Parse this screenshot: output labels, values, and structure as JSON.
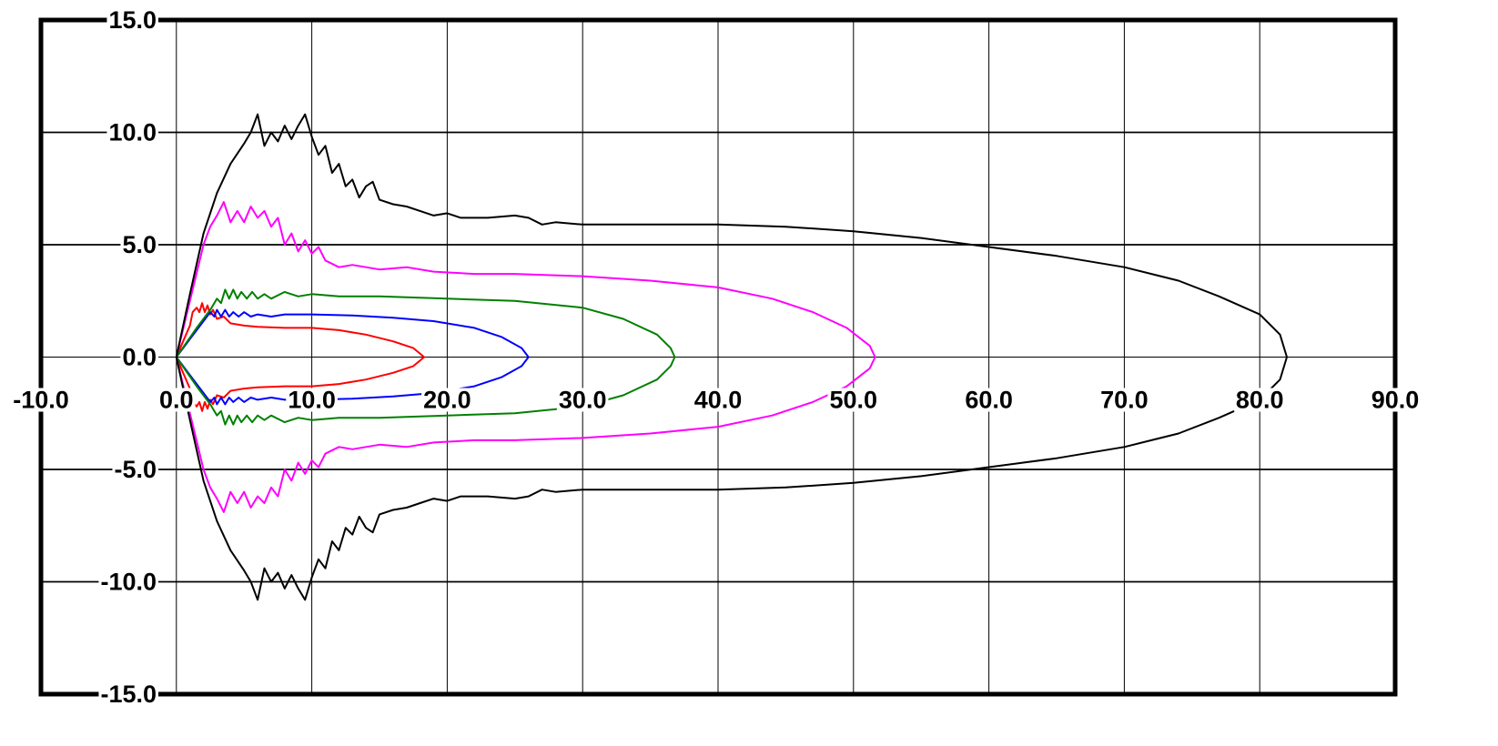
{
  "chart_data": {
    "type": "line",
    "title": "",
    "xlabel": "",
    "ylabel": "",
    "xlim": [
      -10,
      90
    ],
    "ylim": [
      -15,
      15
    ],
    "x_ticks": [
      -10,
      0,
      10,
      20,
      30,
      40,
      50,
      60,
      70,
      80,
      90
    ],
    "y_ticks": [
      -15,
      -10,
      -5,
      0,
      5,
      10,
      15
    ],
    "x_tick_labels": [
      "-10.0",
      "0.0",
      "10.0",
      "20.0",
      "30.0",
      "40.0",
      "50.0",
      "60.0",
      "70.0",
      "80.0",
      "90.0"
    ],
    "y_tick_labels": [
      "-15.0",
      "-10.0",
      "-5.0",
      "0.0",
      "5.0",
      "10.0",
      "15.0"
    ],
    "grid": true,
    "legend": "none",
    "series": [
      {
        "color": "#ff0000",
        "points": [
          [
            0,
            0
          ],
          [
            0.5,
            0.7
          ],
          [
            1.0,
            1.4
          ],
          [
            1.2,
            2.0
          ],
          [
            1.5,
            2.2
          ],
          [
            1.7,
            2.0
          ],
          [
            1.9,
            2.4
          ],
          [
            2.1,
            2.0
          ],
          [
            2.3,
            2.3
          ],
          [
            2.5,
            1.9
          ],
          [
            2.7,
            2.1
          ],
          [
            3.0,
            1.7
          ],
          [
            3.5,
            1.8
          ],
          [
            4.0,
            1.5
          ],
          [
            5.0,
            1.4
          ],
          [
            6.0,
            1.35
          ],
          [
            8.0,
            1.3
          ],
          [
            10.0,
            1.3
          ],
          [
            12.0,
            1.2
          ],
          [
            14.0,
            1.0
          ],
          [
            16.0,
            0.7
          ],
          [
            17.5,
            0.4
          ],
          [
            18.3,
            0.0
          ],
          [
            17.5,
            -0.4
          ],
          [
            16.0,
            -0.7
          ],
          [
            14.0,
            -1.0
          ],
          [
            12.0,
            -1.2
          ],
          [
            10.0,
            -1.3
          ],
          [
            8.0,
            -1.3
          ],
          [
            6.0,
            -1.35
          ],
          [
            5.0,
            -1.4
          ],
          [
            4.0,
            -1.5
          ],
          [
            3.5,
            -1.8
          ],
          [
            3.0,
            -1.7
          ],
          [
            2.7,
            -2.1
          ],
          [
            2.5,
            -1.9
          ],
          [
            2.3,
            -2.3
          ],
          [
            2.1,
            -2.0
          ],
          [
            1.9,
            -2.4
          ],
          [
            1.7,
            -2.0
          ],
          [
            1.5,
            -2.2
          ],
          [
            1.2,
            -2.0
          ],
          [
            1.0,
            -1.4
          ],
          [
            0.5,
            -0.7
          ],
          [
            0,
            0
          ]
        ]
      },
      {
        "color": "#0000ff",
        "points": [
          [
            0,
            0
          ],
          [
            1.0,
            0.8
          ],
          [
            2.0,
            1.6
          ],
          [
            2.5,
            2.0
          ],
          [
            2.8,
            1.8
          ],
          [
            3.0,
            2.1
          ],
          [
            3.3,
            1.8
          ],
          [
            3.6,
            2.1
          ],
          [
            3.9,
            1.8
          ],
          [
            4.2,
            2.0
          ],
          [
            4.6,
            1.8
          ],
          [
            5.0,
            2.0
          ],
          [
            5.5,
            1.8
          ],
          [
            6.0,
            1.9
          ],
          [
            7.0,
            1.8
          ],
          [
            8.0,
            1.9
          ],
          [
            10.0,
            1.9
          ],
          [
            13.0,
            1.85
          ],
          [
            16.0,
            1.75
          ],
          [
            19.0,
            1.6
          ],
          [
            22.0,
            1.3
          ],
          [
            24.0,
            0.9
          ],
          [
            25.5,
            0.4
          ],
          [
            26.0,
            0.0
          ],
          [
            25.5,
            -0.4
          ],
          [
            24.0,
            -0.9
          ],
          [
            22.0,
            -1.3
          ],
          [
            19.0,
            -1.6
          ],
          [
            16.0,
            -1.75
          ],
          [
            13.0,
            -1.85
          ],
          [
            10.0,
            -1.9
          ],
          [
            8.0,
            -1.9
          ],
          [
            7.0,
            -1.8
          ],
          [
            6.0,
            -1.9
          ],
          [
            5.5,
            -1.8
          ],
          [
            5.0,
            -2.0
          ],
          [
            4.6,
            -1.8
          ],
          [
            4.2,
            -2.0
          ],
          [
            3.9,
            -1.8
          ],
          [
            3.6,
            -2.1
          ],
          [
            3.3,
            -1.8
          ],
          [
            3.0,
            -2.1
          ],
          [
            2.8,
            -1.8
          ],
          [
            2.5,
            -2.0
          ],
          [
            2.0,
            -1.6
          ],
          [
            1.0,
            -0.8
          ],
          [
            0,
            0
          ]
        ]
      },
      {
        "color": "#008000",
        "points": [
          [
            0,
            0
          ],
          [
            1.5,
            1.3
          ],
          [
            2.5,
            2.1
          ],
          [
            3.0,
            2.6
          ],
          [
            3.3,
            2.4
          ],
          [
            3.6,
            3.0
          ],
          [
            3.9,
            2.6
          ],
          [
            4.2,
            3.0
          ],
          [
            4.5,
            2.6
          ],
          [
            4.8,
            2.9
          ],
          [
            5.2,
            2.6
          ],
          [
            5.6,
            2.9
          ],
          [
            6.0,
            2.6
          ],
          [
            6.5,
            2.8
          ],
          [
            7.0,
            2.6
          ],
          [
            8.0,
            2.9
          ],
          [
            9.0,
            2.7
          ],
          [
            10.0,
            2.8
          ],
          [
            12.0,
            2.7
          ],
          [
            15.0,
            2.7
          ],
          [
            20.0,
            2.6
          ],
          [
            25.0,
            2.5
          ],
          [
            30.0,
            2.2
          ],
          [
            33.0,
            1.7
          ],
          [
            35.5,
            1.0
          ],
          [
            36.5,
            0.4
          ],
          [
            36.8,
            0.0
          ],
          [
            36.5,
            -0.4
          ],
          [
            35.5,
            -1.0
          ],
          [
            33.0,
            -1.7
          ],
          [
            30.0,
            -2.2
          ],
          [
            25.0,
            -2.5
          ],
          [
            20.0,
            -2.6
          ],
          [
            15.0,
            -2.7
          ],
          [
            12.0,
            -2.7
          ],
          [
            10.0,
            -2.8
          ],
          [
            9.0,
            -2.7
          ],
          [
            8.0,
            -2.9
          ],
          [
            7.0,
            -2.6
          ],
          [
            6.5,
            -2.8
          ],
          [
            6.0,
            -2.6
          ],
          [
            5.6,
            -2.9
          ],
          [
            5.2,
            -2.6
          ],
          [
            4.8,
            -2.9
          ],
          [
            4.5,
            -2.6
          ],
          [
            4.2,
            -3.0
          ],
          [
            3.9,
            -2.6
          ],
          [
            3.6,
            -3.0
          ],
          [
            3.3,
            -2.4
          ],
          [
            3.0,
            -2.6
          ],
          [
            2.5,
            -2.1
          ],
          [
            1.5,
            -1.3
          ],
          [
            0,
            0
          ]
        ]
      },
      {
        "color": "#ff00ff",
        "points": [
          [
            0,
            0
          ],
          [
            1.0,
            2.5
          ],
          [
            2.0,
            5.0
          ],
          [
            2.5,
            5.8
          ],
          [
            3.0,
            6.3
          ],
          [
            3.5,
            6.9
          ],
          [
            4.0,
            6.0
          ],
          [
            4.5,
            6.5
          ],
          [
            5.0,
            6.0
          ],
          [
            5.5,
            6.7
          ],
          [
            6.0,
            6.2
          ],
          [
            6.5,
            6.5
          ],
          [
            7.0,
            5.8
          ],
          [
            7.5,
            6.2
          ],
          [
            8.0,
            5.0
          ],
          [
            8.5,
            5.5
          ],
          [
            9.0,
            4.7
          ],
          [
            9.5,
            5.2
          ],
          [
            10.0,
            4.6
          ],
          [
            10.5,
            4.9
          ],
          [
            11.0,
            4.3
          ],
          [
            12.0,
            4.0
          ],
          [
            13.0,
            4.1
          ],
          [
            15.0,
            3.9
          ],
          [
            17.0,
            4.0
          ],
          [
            19.0,
            3.8
          ],
          [
            22.0,
            3.7
          ],
          [
            25.0,
            3.7
          ],
          [
            30.0,
            3.6
          ],
          [
            35.0,
            3.4
          ],
          [
            40.0,
            3.1
          ],
          [
            44.0,
            2.6
          ],
          [
            47.0,
            2.0
          ],
          [
            49.5,
            1.3
          ],
          [
            51.2,
            0.5
          ],
          [
            51.6,
            0.0
          ],
          [
            51.2,
            -0.5
          ],
          [
            49.5,
            -1.3
          ],
          [
            47.0,
            -2.0
          ],
          [
            44.0,
            -2.6
          ],
          [
            40.0,
            -3.1
          ],
          [
            35.0,
            -3.4
          ],
          [
            30.0,
            -3.6
          ],
          [
            25.0,
            -3.7
          ],
          [
            22.0,
            -3.7
          ],
          [
            19.0,
            -3.8
          ],
          [
            17.0,
            -4.0
          ],
          [
            15.0,
            -3.9
          ],
          [
            13.0,
            -4.1
          ],
          [
            12.0,
            -4.0
          ],
          [
            11.0,
            -4.3
          ],
          [
            10.5,
            -4.9
          ],
          [
            10.0,
            -4.6
          ],
          [
            9.5,
            -5.2
          ],
          [
            9.0,
            -4.7
          ],
          [
            8.5,
            -5.5
          ],
          [
            8.0,
            -5.0
          ],
          [
            7.5,
            -6.2
          ],
          [
            7.0,
            -5.8
          ],
          [
            6.5,
            -6.5
          ],
          [
            6.0,
            -6.2
          ],
          [
            5.5,
            -6.7
          ],
          [
            5.0,
            -6.0
          ],
          [
            4.5,
            -6.5
          ],
          [
            4.0,
            -6.0
          ],
          [
            3.5,
            -6.9
          ],
          [
            3.0,
            -6.3
          ],
          [
            2.5,
            -5.8
          ],
          [
            2.0,
            -5.0
          ],
          [
            1.0,
            -2.5
          ],
          [
            0,
            0
          ]
        ]
      },
      {
        "color": "#000000",
        "points": [
          [
            0,
            0
          ],
          [
            1.0,
            2.8
          ],
          [
            2.0,
            5.5
          ],
          [
            3.0,
            7.3
          ],
          [
            4.0,
            8.6
          ],
          [
            5.0,
            9.5
          ],
          [
            5.5,
            10.0
          ],
          [
            6.0,
            10.8
          ],
          [
            6.5,
            9.4
          ],
          [
            7.0,
            10.0
          ],
          [
            7.5,
            9.6
          ],
          [
            8.0,
            10.3
          ],
          [
            8.5,
            9.7
          ],
          [
            9.0,
            10.3
          ],
          [
            9.5,
            10.8
          ],
          [
            10.0,
            9.8
          ],
          [
            10.5,
            9.0
          ],
          [
            11.0,
            9.4
          ],
          [
            11.5,
            8.2
          ],
          [
            12.0,
            8.6
          ],
          [
            12.5,
            7.6
          ],
          [
            13.0,
            7.9
          ],
          [
            13.5,
            7.1
          ],
          [
            14.0,
            7.6
          ],
          [
            14.5,
            7.8
          ],
          [
            15.0,
            7.0
          ],
          [
            16.0,
            6.8
          ],
          [
            17.0,
            6.7
          ],
          [
            18.0,
            6.5
          ],
          [
            19.0,
            6.3
          ],
          [
            20.0,
            6.4
          ],
          [
            21.0,
            6.2
          ],
          [
            23.0,
            6.2
          ],
          [
            25.0,
            6.3
          ],
          [
            26.0,
            6.2
          ],
          [
            27.0,
            5.9
          ],
          [
            28.0,
            6.0
          ],
          [
            30.0,
            5.9
          ],
          [
            35.0,
            5.9
          ],
          [
            40.0,
            5.9
          ],
          [
            45.0,
            5.8
          ],
          [
            50.0,
            5.6
          ],
          [
            55.0,
            5.3
          ],
          [
            60.0,
            4.9
          ],
          [
            65.0,
            4.5
          ],
          [
            70.0,
            4.0
          ],
          [
            74.0,
            3.4
          ],
          [
            77.0,
            2.7
          ],
          [
            80.0,
            1.9
          ],
          [
            81.5,
            1.0
          ],
          [
            82.0,
            0.0
          ],
          [
            81.5,
            -1.0
          ],
          [
            80.0,
            -1.9
          ],
          [
            77.0,
            -2.7
          ],
          [
            74.0,
            -3.4
          ],
          [
            70.0,
            -4.0
          ],
          [
            65.0,
            -4.5
          ],
          [
            60.0,
            -4.9
          ],
          [
            55.0,
            -5.3
          ],
          [
            50.0,
            -5.6
          ],
          [
            45.0,
            -5.8
          ],
          [
            40.0,
            -5.9
          ],
          [
            35.0,
            -5.9
          ],
          [
            30.0,
            -5.9
          ],
          [
            28.0,
            -6.0
          ],
          [
            27.0,
            -5.9
          ],
          [
            26.0,
            -6.2
          ],
          [
            25.0,
            -6.3
          ],
          [
            23.0,
            -6.2
          ],
          [
            21.0,
            -6.2
          ],
          [
            20.0,
            -6.4
          ],
          [
            19.0,
            -6.3
          ],
          [
            18.0,
            -6.5
          ],
          [
            17.0,
            -6.7
          ],
          [
            16.0,
            -6.8
          ],
          [
            15.0,
            -7.0
          ],
          [
            14.5,
            -7.8
          ],
          [
            14.0,
            -7.6
          ],
          [
            13.5,
            -7.1
          ],
          [
            13.0,
            -7.9
          ],
          [
            12.5,
            -7.6
          ],
          [
            12.0,
            -8.6
          ],
          [
            11.5,
            -8.2
          ],
          [
            11.0,
            -9.4
          ],
          [
            10.5,
            -9.0
          ],
          [
            10.0,
            -9.8
          ],
          [
            9.5,
            -10.8
          ],
          [
            9.0,
            -10.3
          ],
          [
            8.5,
            -9.7
          ],
          [
            8.0,
            -10.3
          ],
          [
            7.5,
            -9.6
          ],
          [
            7.0,
            -10.0
          ],
          [
            6.5,
            -9.4
          ],
          [
            6.0,
            -10.8
          ],
          [
            5.5,
            -10.0
          ],
          [
            5.0,
            -9.5
          ],
          [
            4.0,
            -8.6
          ],
          [
            3.0,
            -7.3
          ],
          [
            2.0,
            -5.5
          ],
          [
            1.0,
            -2.8
          ],
          [
            0,
            0
          ]
        ]
      }
    ]
  }
}
